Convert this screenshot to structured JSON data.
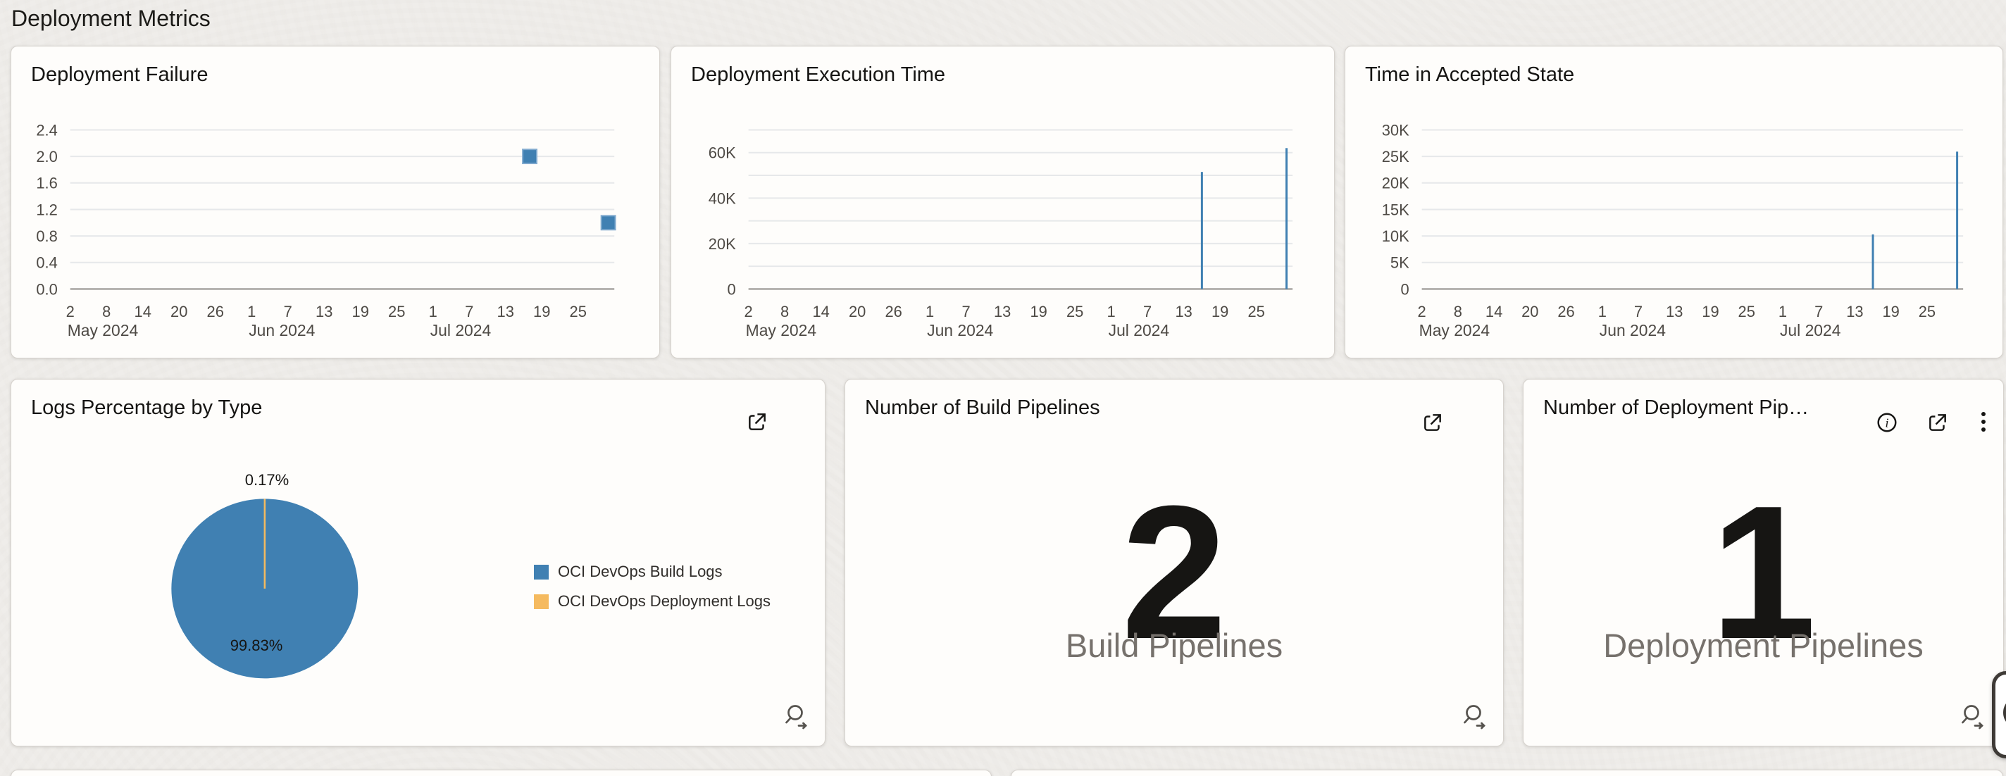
{
  "page": {
    "title": "Deployment Metrics"
  },
  "colors": {
    "background": "#efedea",
    "card_background": "#fefdfb",
    "card_border": "#d7d3ce",
    "title_text": "#161513",
    "axis_text": "#4e4a45",
    "grid_line": "#e6e8ea",
    "axis_line": "#a2a09c",
    "series_blue": "#4080B2",
    "marker_stroke": "#7FA9CE",
    "series_yellow": "#F5BA5F",
    "kpi_label_text": "#76716c",
    "legend_text": "#312e2b"
  },
  "icons": {
    "external_link": "open-in-new-icon",
    "info": "info-circle-icon",
    "menu": "kebab-menu-icon",
    "magnifier": "explore-data-magnifier-icon",
    "help": "floating-help-button"
  },
  "chart_data": [
    {
      "id": "deployment-failure",
      "type": "scatter",
      "title": "Deployment Failure",
      "grid_on": true,
      "legend_position": "none",
      "x_domain": [
        0,
        90
      ],
      "x_ticks": [
        {
          "day": 0,
          "label": "2"
        },
        {
          "day": 6,
          "label": "8"
        },
        {
          "day": 12,
          "label": "14"
        },
        {
          "day": 18,
          "label": "20"
        },
        {
          "day": 24,
          "label": "26"
        },
        {
          "day": 30,
          "label": "1"
        },
        {
          "day": 36,
          "label": "7"
        },
        {
          "day": 42,
          "label": "13"
        },
        {
          "day": 48,
          "label": "19"
        },
        {
          "day": 54,
          "label": "25"
        },
        {
          "day": 60,
          "label": "1"
        },
        {
          "day": 66,
          "label": "7"
        },
        {
          "day": 72,
          "label": "13"
        },
        {
          "day": 78,
          "label": "19"
        },
        {
          "day": 84,
          "label": "25"
        }
      ],
      "x_months": [
        {
          "day": 0,
          "label": "May 2024"
        },
        {
          "day": 30,
          "label": "Jun 2024"
        },
        {
          "day": 60,
          "label": "Jul 2024"
        }
      ],
      "ylim": [
        0,
        2.4
      ],
      "grid_values": [
        0,
        0.4,
        0.8,
        1.2,
        1.6,
        2.0,
        2.4
      ],
      "grid_labels": [
        "0.0",
        "0.4",
        "0.8",
        "1.2",
        "1.6",
        "2.0",
        "2.4"
      ],
      "points": [
        {
          "date": "Jul 17, 2024",
          "day": 76,
          "value": 2
        },
        {
          "date": "Jul 30, 2024",
          "day": 89,
          "value": 1
        }
      ]
    },
    {
      "id": "deployment-execution-time",
      "type": "bar",
      "title": "Deployment Execution Time",
      "grid_on": true,
      "legend_position": "none",
      "x_domain": [
        0,
        90
      ],
      "x_ticks": [
        {
          "day": 0,
          "label": "2"
        },
        {
          "day": 6,
          "label": "8"
        },
        {
          "day": 12,
          "label": "14"
        },
        {
          "day": 18,
          "label": "20"
        },
        {
          "day": 24,
          "label": "26"
        },
        {
          "day": 30,
          "label": "1"
        },
        {
          "day": 36,
          "label": "7"
        },
        {
          "day": 42,
          "label": "13"
        },
        {
          "day": 48,
          "label": "19"
        },
        {
          "day": 54,
          "label": "25"
        },
        {
          "day": 60,
          "label": "1"
        },
        {
          "day": 66,
          "label": "7"
        },
        {
          "day": 72,
          "label": "13"
        },
        {
          "day": 78,
          "label": "19"
        },
        {
          "day": 84,
          "label": "25"
        }
      ],
      "x_months": [
        {
          "day": 0,
          "label": "May 2024"
        },
        {
          "day": 30,
          "label": "Jun 2024"
        },
        {
          "day": 60,
          "label": "Jul 2024"
        }
      ],
      "ylim": [
        0,
        70000
      ],
      "grid_values": [
        0,
        10000,
        20000,
        30000,
        40000,
        50000,
        60000,
        70000
      ],
      "grid_labels": [
        "0",
        "",
        "20K",
        "",
        "40K",
        "",
        "60K",
        ""
      ],
      "points": [
        {
          "date": "Jul 16, 2024",
          "day": 75,
          "value": 51500
        },
        {
          "date": "Jul 30, 2024",
          "day": 89,
          "value": 62000
        }
      ]
    },
    {
      "id": "time-in-accepted-state",
      "type": "bar",
      "title": "Time in Accepted State",
      "grid_on": true,
      "legend_position": "none",
      "x_domain": [
        0,
        90
      ],
      "x_ticks": [
        {
          "day": 0,
          "label": "2"
        },
        {
          "day": 6,
          "label": "8"
        },
        {
          "day": 12,
          "label": "14"
        },
        {
          "day": 18,
          "label": "20"
        },
        {
          "day": 24,
          "label": "26"
        },
        {
          "day": 30,
          "label": "1"
        },
        {
          "day": 36,
          "label": "7"
        },
        {
          "day": 42,
          "label": "13"
        },
        {
          "day": 48,
          "label": "19"
        },
        {
          "day": 54,
          "label": "25"
        },
        {
          "day": 60,
          "label": "1"
        },
        {
          "day": 66,
          "label": "7"
        },
        {
          "day": 72,
          "label": "13"
        },
        {
          "day": 78,
          "label": "19"
        },
        {
          "day": 84,
          "label": "25"
        }
      ],
      "x_months": [
        {
          "day": 0,
          "label": "May 2024"
        },
        {
          "day": 30,
          "label": "Jun 2024"
        },
        {
          "day": 60,
          "label": "Jul 2024"
        }
      ],
      "ylim": [
        0,
        30000
      ],
      "grid_values": [
        0,
        5000,
        10000,
        15000,
        20000,
        25000,
        30000
      ],
      "grid_labels": [
        "0",
        "5K",
        "10K",
        "15K",
        "20K",
        "25K",
        "30K"
      ],
      "points": [
        {
          "date": "Jul 16, 2024",
          "day": 75,
          "value": 10300
        },
        {
          "date": "Jul 30, 2024",
          "day": 89,
          "value": 25900
        }
      ]
    },
    {
      "id": "logs-percentage-by-type",
      "type": "pie",
      "title": "Logs Percentage by Type",
      "legend_position": "right",
      "slices": [
        {
          "label": "OCI DevOps Build Logs",
          "value": 99.83,
          "display": "99.83%",
          "color": "#4080B2"
        },
        {
          "label": "OCI DevOps Deployment Logs",
          "value": 0.17,
          "display": "0.17%",
          "color": "#F5BA5F"
        }
      ]
    }
  ],
  "kpi_cards": [
    {
      "title": "Number of Build Pipelines",
      "value": "2",
      "label": "Build Pipelines"
    },
    {
      "title": "Number of Deployment Pip…",
      "value": "1",
      "label": "Deployment Pipelines"
    }
  ]
}
